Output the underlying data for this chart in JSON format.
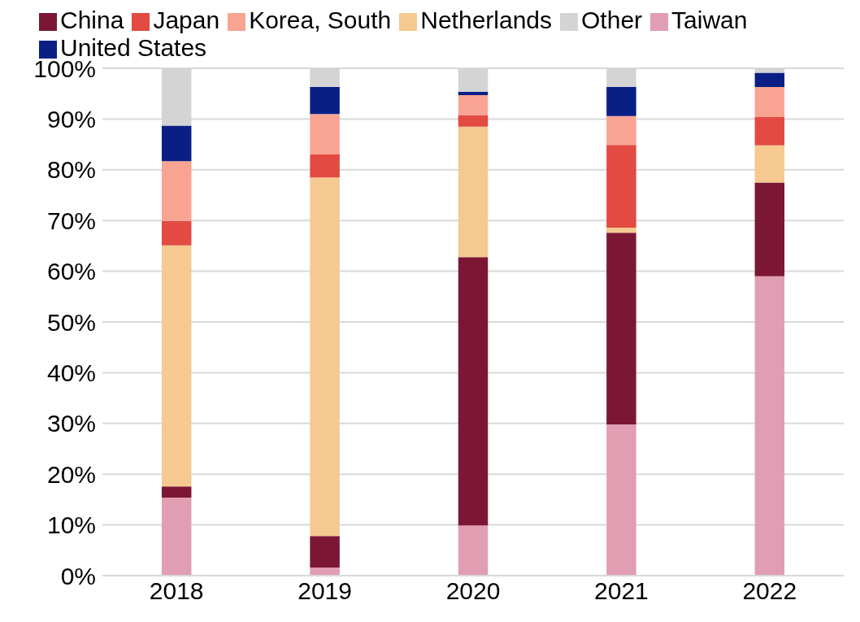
{
  "chart_data": {
    "type": "bar",
    "stacked": true,
    "categories": [
      "2018",
      "2019",
      "2020",
      "2021",
      "2022"
    ],
    "series": [
      {
        "name": "Taiwan",
        "color": "#e19eb3",
        "values": [
          15.4,
          1.6,
          9.9,
          29.8,
          59.0
        ]
      },
      {
        "name": "China",
        "color": "#7b1735",
        "values": [
          2.2,
          6.2,
          52.9,
          37.8,
          18.5
        ]
      },
      {
        "name": "Netherlands",
        "color": "#f5c990",
        "values": [
          47.5,
          70.7,
          25.7,
          1.0,
          7.3
        ]
      },
      {
        "name": "Japan",
        "color": "#e24a42",
        "values": [
          4.8,
          4.5,
          2.3,
          16.3,
          5.6
        ]
      },
      {
        "name": "Korea, South",
        "color": "#f9a492",
        "values": [
          11.8,
          8.0,
          3.9,
          5.7,
          5.9
        ]
      },
      {
        "name": "United States",
        "color": "#0a1f86",
        "values": [
          7.0,
          5.3,
          0.7,
          5.7,
          2.8
        ]
      },
      {
        "name": "Other",
        "color": "#d4d4d4",
        "values": [
          11.3,
          3.7,
          4.6,
          3.7,
          0.9
        ]
      }
    ],
    "ylim": [
      0,
      100
    ],
    "yticks": [
      {
        "value": 0,
        "label": "0%"
      },
      {
        "value": 10,
        "label": "10%"
      },
      {
        "value": 20,
        "label": "20%"
      },
      {
        "value": 30,
        "label": "30%"
      },
      {
        "value": 40,
        "label": "40%"
      },
      {
        "value": 50,
        "label": "50%"
      },
      {
        "value": 60,
        "label": "60%"
      },
      {
        "value": 70,
        "label": "70%"
      },
      {
        "value": 80,
        "label": "80%"
      },
      {
        "value": 90,
        "label": "90%"
      },
      {
        "value": 100,
        "label": "100%"
      }
    ],
    "grid": "y",
    "legend": "top"
  }
}
